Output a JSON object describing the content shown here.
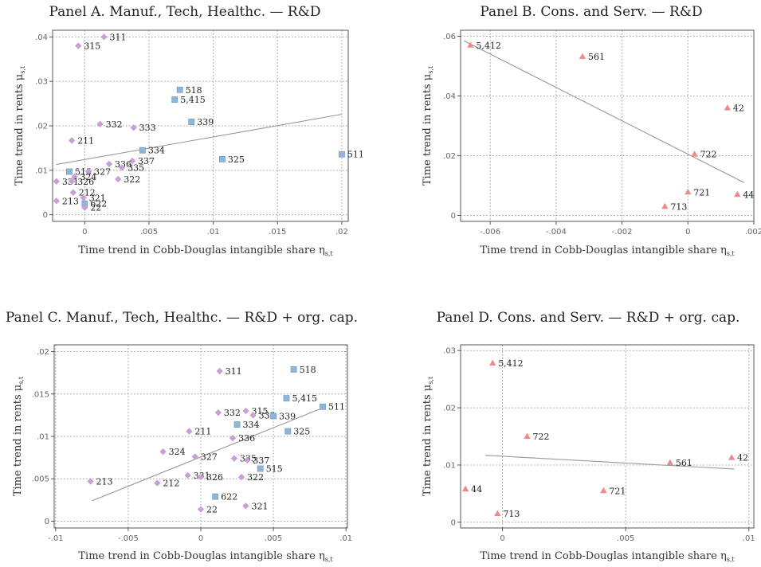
{
  "colors": {
    "diamond": "#c9a0d6",
    "square": "#8fb5d8",
    "triangle": "#ee8a8d",
    "fit": "#999999",
    "grid": "#9a9a9a"
  },
  "chart_data": [
    {
      "id": "A",
      "type": "scatter",
      "title": "Panel A. Manuf., Tech, Healthc. — R&D",
      "xlabel": "Time trend in Cobb-Douglas intangible share η",
      "xlabel_sub": "s,t",
      "ylabel": "Time trend in rents μ",
      "ylabel_sub": "s,t",
      "xlim": [
        -0.0025,
        0.0205
      ],
      "ylim": [
        -0.0015,
        0.0415
      ],
      "xticks": [
        0,
        0.005,
        0.01,
        0.015,
        0.02
      ],
      "xtick_labels": [
        "0",
        ".005",
        ".01",
        ".015",
        ".02"
      ],
      "yticks": [
        0,
        0.01,
        0.02,
        0.03,
        0.04
      ],
      "ytick_labels": [
        "0",
        ".01",
        ".02",
        ".03",
        ".04"
      ],
      "grid": true,
      "fit": {
        "x": [
          -0.0022,
          0.02
        ],
        "y": [
          0.0113,
          0.0226
        ]
      },
      "points": [
        {
          "label": "311",
          "x": 0.0015,
          "y": 0.04,
          "marker": "diamond"
        },
        {
          "label": "315",
          "x": -0.0005,
          "y": 0.038,
          "marker": "diamond"
        },
        {
          "label": "518",
          "x": 0.0074,
          "y": 0.0281,
          "marker": "square"
        },
        {
          "label": "5,415",
          "x": 0.007,
          "y": 0.0259,
          "marker": "square"
        },
        {
          "label": "339",
          "x": 0.0083,
          "y": 0.0209,
          "marker": "square"
        },
        {
          "label": "332",
          "x": 0.0012,
          "y": 0.0204,
          "marker": "diamond"
        },
        {
          "label": "333",
          "x": 0.0038,
          "y": 0.0196,
          "marker": "diamond"
        },
        {
          "label": "211",
          "x": -0.001,
          "y": 0.0167,
          "marker": "diamond"
        },
        {
          "label": "334",
          "x": 0.0045,
          "y": 0.0145,
          "marker": "square"
        },
        {
          "label": "325",
          "x": 0.0107,
          "y": 0.0125,
          "marker": "square"
        },
        {
          "label": "511",
          "x": 0.02,
          "y": 0.0136,
          "marker": "square"
        },
        {
          "label": "337",
          "x": 0.0037,
          "y": 0.0121,
          "marker": "diamond"
        },
        {
          "label": "336",
          "x": 0.0019,
          "y": 0.0114,
          "marker": "diamond"
        },
        {
          "label": "335",
          "x": 0.0029,
          "y": 0.0106,
          "marker": "diamond"
        },
        {
          "label": "515",
          "x": -0.0012,
          "y": 0.0097,
          "marker": "square"
        },
        {
          "label": "327",
          "x": 0.0003,
          "y": 0.0097,
          "marker": "diamond"
        },
        {
          "label": "324",
          "x": -0.0008,
          "y": 0.0085,
          "marker": "diamond"
        },
        {
          "label": "322",
          "x": 0.0026,
          "y": 0.008,
          "marker": "diamond"
        },
        {
          "label": "331",
          "x": -0.0022,
          "y": 0.0075,
          "marker": "diamond"
        },
        {
          "label": "326",
          "x": -0.001,
          "y": 0.0075,
          "marker": "diamond"
        },
        {
          "label": "212",
          "x": -0.0009,
          "y": 0.005,
          "marker": "diamond"
        },
        {
          "label": "321",
          "x": -0.0001,
          "y": 0.0038,
          "marker": "diamond"
        },
        {
          "label": "213",
          "x": -0.0022,
          "y": 0.0031,
          "marker": "diamond"
        },
        {
          "label": "622",
          "x": 0.0,
          "y": 0.0025,
          "marker": "square"
        },
        {
          "label": "22",
          "x": 0.0,
          "y": 0.0016,
          "marker": "diamond"
        }
      ]
    },
    {
      "id": "B",
      "type": "scatter",
      "title": "Panel B. Cons. and Serv. — R&D",
      "xlabel": "Time trend in Cobb-Douglas intangible share η",
      "xlabel_sub": "s,t",
      "ylabel": "Time trend in rents μ",
      "ylabel_sub": "s,t",
      "xlim": [
        -0.0069,
        0.002
      ],
      "ylim": [
        -0.002,
        0.062
      ],
      "xticks": [
        -0.006,
        -0.004,
        -0.002,
        0,
        0.002
      ],
      "xtick_labels": [
        "-.006",
        "-.004",
        "-.002",
        "0",
        ".002"
      ],
      "yticks": [
        0,
        0.02,
        0.04,
        0.06
      ],
      "ytick_labels": [
        "0",
        ".02",
        ".04",
        ".06"
      ],
      "grid": true,
      "fit": {
        "x": [
          -0.0068,
          0.0017
        ],
        "y": [
          0.0585,
          0.011
        ]
      },
      "points": [
        {
          "label": "5,412",
          "x": -0.0066,
          "y": 0.057,
          "marker": "triangle"
        },
        {
          "label": "561",
          "x": -0.0032,
          "y": 0.0532,
          "marker": "triangle"
        },
        {
          "label": "42",
          "x": 0.0012,
          "y": 0.036,
          "marker": "triangle"
        },
        {
          "label": "722",
          "x": 0.0002,
          "y": 0.0205,
          "marker": "triangle"
        },
        {
          "label": "721",
          "x": 0.0,
          "y": 0.0078,
          "marker": "triangle"
        },
        {
          "label": "44",
          "x": 0.0015,
          "y": 0.007,
          "marker": "triangle"
        },
        {
          "label": "713",
          "x": -0.0007,
          "y": 0.003,
          "marker": "triangle"
        }
      ]
    },
    {
      "id": "C",
      "type": "scatter",
      "title": "Panel C. Manuf., Tech, Healthc. — R&D + org. cap.",
      "xlabel": "Time trend in Cobb-Douglas intangible share η",
      "xlabel_sub": "s,t",
      "ylabel": "Time trend in rents μ",
      "ylabel_sub": "s,t",
      "xlim": [
        -0.0101,
        0.0101
      ],
      "ylim": [
        -0.0008,
        0.0208
      ],
      "xticks": [
        -0.01,
        -0.005,
        0,
        0.005,
        0.01
      ],
      "xtick_labels": [
        "-.01",
        "-.005",
        "0",
        ".005",
        ".01"
      ],
      "yticks": [
        0,
        0.005,
        0.01,
        0.015,
        0.02
      ],
      "ytick_labels": [
        "0",
        ".005",
        ".01",
        ".015",
        ".02"
      ],
      "grid": true,
      "fit": {
        "x": [
          -0.0075,
          0.0083
        ],
        "y": [
          0.0024,
          0.0133
        ]
      },
      "points": [
        {
          "label": "311",
          "x": 0.0013,
          "y": 0.0177,
          "marker": "diamond"
        },
        {
          "label": "518",
          "x": 0.0064,
          "y": 0.0179,
          "marker": "square"
        },
        {
          "label": "5,415",
          "x": 0.0059,
          "y": 0.0145,
          "marker": "square"
        },
        {
          "label": "511",
          "x": 0.0084,
          "y": 0.0135,
          "marker": "square"
        },
        {
          "label": "332",
          "x": 0.0012,
          "y": 0.0128,
          "marker": "diamond"
        },
        {
          "label": "315",
          "x": 0.0031,
          "y": 0.013,
          "marker": "diamond"
        },
        {
          "label": "333",
          "x": 0.0036,
          "y": 0.0125,
          "marker": "diamond"
        },
        {
          "label": "339",
          "x": 0.005,
          "y": 0.0124,
          "marker": "square"
        },
        {
          "label": "334",
          "x": 0.0025,
          "y": 0.0114,
          "marker": "square"
        },
        {
          "label": "211",
          "x": -0.0008,
          "y": 0.0106,
          "marker": "diamond"
        },
        {
          "label": "325",
          "x": 0.006,
          "y": 0.0106,
          "marker": "square"
        },
        {
          "label": "336",
          "x": 0.0022,
          "y": 0.0098,
          "marker": "diamond"
        },
        {
          "label": "324",
          "x": -0.0026,
          "y": 0.0082,
          "marker": "diamond"
        },
        {
          "label": "327",
          "x": -0.0004,
          "y": 0.0076,
          "marker": "diamond"
        },
        {
          "label": "335",
          "x": 0.0023,
          "y": 0.0074,
          "marker": "diamond"
        },
        {
          "label": "337",
          "x": 0.0032,
          "y": 0.0072,
          "marker": "diamond"
        },
        {
          "label": "515",
          "x": 0.0041,
          "y": 0.0062,
          "marker": "square"
        },
        {
          "label": "331",
          "x": -0.0009,
          "y": 0.0054,
          "marker": "diamond"
        },
        {
          "label": "326",
          "x": 0.0,
          "y": 0.0052,
          "marker": "diamond"
        },
        {
          "label": "322",
          "x": 0.0028,
          "y": 0.0052,
          "marker": "diamond"
        },
        {
          "label": "212",
          "x": -0.003,
          "y": 0.0045,
          "marker": "diamond"
        },
        {
          "label": "213",
          "x": -0.0076,
          "y": 0.0047,
          "marker": "diamond"
        },
        {
          "label": "622",
          "x": 0.001,
          "y": 0.0029,
          "marker": "square"
        },
        {
          "label": "321",
          "x": 0.0031,
          "y": 0.0018,
          "marker": "diamond"
        },
        {
          "label": "22",
          "x": 0.0,
          "y": 0.0014,
          "marker": "diamond"
        }
      ]
    },
    {
      "id": "D",
      "type": "scatter",
      "title": "Panel D. Cons. and Serv. — R&D + org. cap.",
      "xlabel": "Time trend in Cobb-Douglas intangible share η",
      "xlabel_sub": "s,t",
      "ylabel": "Time trend in rents μ",
      "ylabel_sub": "s,t",
      "xlim": [
        -0.0017,
        0.0102
      ],
      "ylim": [
        -0.001,
        0.031
      ],
      "xticks": [
        0,
        0.005,
        0.01
      ],
      "xtick_labels": [
        "0",
        ".005",
        ".01"
      ],
      "yticks": [
        0,
        0.01,
        0.02,
        0.03
      ],
      "ytick_labels": [
        "0",
        ".01",
        ".02",
        ".03"
      ],
      "grid": true,
      "fit": {
        "x": [
          -0.0007,
          0.0094
        ],
        "y": [
          0.0117,
          0.0093
        ]
      },
      "points": [
        {
          "label": "5,412",
          "x": -0.0004,
          "y": 0.0278,
          "marker": "triangle"
        },
        {
          "label": "722",
          "x": 0.001,
          "y": 0.015,
          "marker": "triangle"
        },
        {
          "label": "42",
          "x": 0.0093,
          "y": 0.0113,
          "marker": "triangle"
        },
        {
          "label": "561",
          "x": 0.0068,
          "y": 0.0104,
          "marker": "triangle"
        },
        {
          "label": "44",
          "x": -0.0015,
          "y": 0.0058,
          "marker": "triangle"
        },
        {
          "label": "721",
          "x": 0.0041,
          "y": 0.0055,
          "marker": "triangle"
        },
        {
          "label": "713",
          "x": -0.0002,
          "y": 0.0015,
          "marker": "triangle"
        }
      ]
    }
  ]
}
